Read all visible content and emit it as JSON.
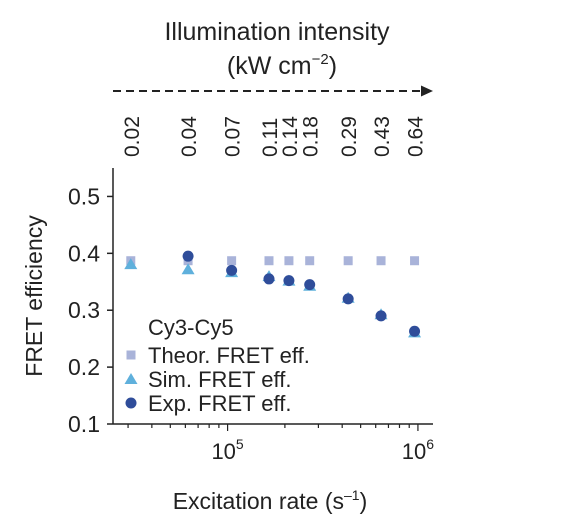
{
  "chart_data": {
    "type": "scatter",
    "title": "",
    "legend_title": "Cy3-Cy5",
    "legend_position": "bottom-left",
    "grid": false,
    "xscale": "log",
    "xlim": [
      25000,
      1200000
    ],
    "ylim": [
      0.1,
      0.55
    ],
    "ylabel": "FRET efficiency",
    "xlabel": {
      "text": "Excitation rate (s",
      "sup": "–1",
      "suffix": ")"
    },
    "x_ticks": [
      {
        "value": 100000,
        "base": "10",
        "exp": "5"
      },
      {
        "value": 1000000,
        "base": "10",
        "exp": "6"
      }
    ],
    "y_ticks": [
      {
        "value": 0.1,
        "label": "0.1"
      },
      {
        "value": 0.2,
        "label": "0.2"
      },
      {
        "value": 0.3,
        "label": "0.3"
      },
      {
        "value": 0.4,
        "label": "0.4"
      },
      {
        "value": 0.5,
        "label": "0.5"
      }
    ],
    "top_axis": {
      "label_line1": "Illumination intensity",
      "label_line2": {
        "text": "(kW cm",
        "sup": "−2",
        "suffix": ")"
      },
      "tick_labels": [
        "0.02",
        "0.04",
        "0.07",
        "0.11",
        "0.14",
        "0.18",
        "0.29",
        "0.43",
        "0.64"
      ],
      "tick_x": [
        31000,
        62000,
        105000,
        165000,
        210000,
        270000,
        430000,
        640000,
        960000
      ]
    },
    "series": [
      {
        "name": "Theor. FRET eff.",
        "marker": "square",
        "color": "#a9b3d9",
        "x": [
          31000,
          62000,
          105000,
          165000,
          210000,
          270000,
          430000,
          640000,
          960000
        ],
        "y": [
          0.387,
          0.387,
          0.387,
          0.387,
          0.387,
          0.387,
          0.387,
          0.387,
          0.387
        ]
      },
      {
        "name": "Sim. FRET eff.",
        "marker": "triangle",
        "color": "#5fb0dc",
        "x": [
          31000,
          62000,
          105000,
          165000,
          210000,
          270000,
          430000,
          640000,
          960000
        ],
        "y": [
          0.381,
          0.372,
          0.367,
          0.36,
          0.352,
          0.343,
          0.322,
          0.293,
          0.261
        ]
      },
      {
        "name": "Exp. FRET eff.",
        "marker": "circle",
        "color": "#2f4d9a",
        "x": [
          62000,
          105000,
          165000,
          210000,
          270000,
          430000,
          640000,
          960000
        ],
        "y": [
          0.395,
          0.37,
          0.355,
          0.352,
          0.345,
          0.32,
          0.29,
          0.263
        ]
      }
    ]
  }
}
